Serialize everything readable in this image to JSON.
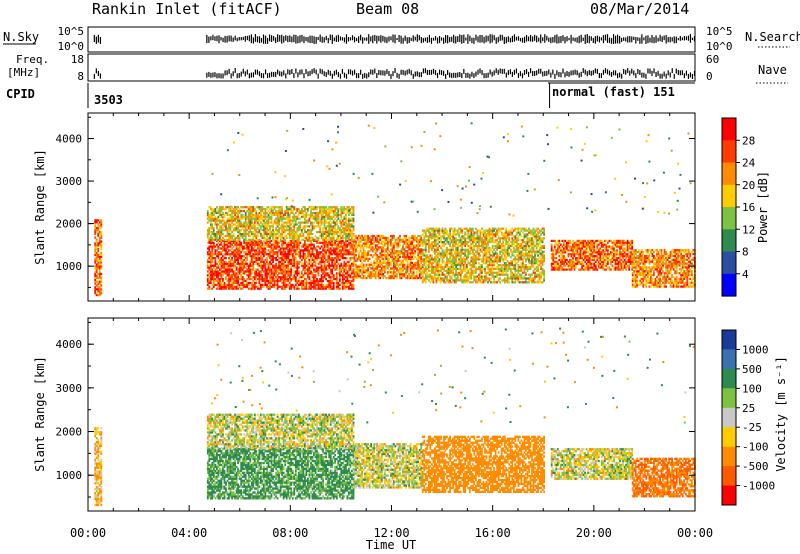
{
  "header": {
    "station": "Rankin Inlet (fitACF)",
    "beam": "Beam 08",
    "date": "08/Mar/2014"
  },
  "strip_panels": {
    "nsky_label": "N.Sky",
    "nsky_ticks": [
      "10^5",
      "10^0"
    ],
    "nsearch_label": "N.Search",
    "nsearch_ticks": [
      "10^5",
      "10^0"
    ],
    "freq_label_1": "Freq.",
    "freq_label_2": "[MHz]",
    "freq_ticks": [
      "18",
      "8"
    ],
    "nave_label": "Nave",
    "nave_ticks": [
      "60",
      "0"
    ],
    "cpid_label": "CPID",
    "cpid_1": "3503",
    "cpid_2": "normal (fast) 151",
    "cpid_switch_hour": 18.25
  },
  "x_axis": {
    "label": "Time UT",
    "tick_labels": [
      "00:00",
      "04:00",
      "08:00",
      "12:00",
      "16:00",
      "20:00",
      "00:00"
    ],
    "range_hours": [
      0,
      24
    ]
  },
  "y_axis": {
    "label": "Slant Range [km]",
    "tick_labels": [
      "1000",
      "2000",
      "3000",
      "4000"
    ],
    "range_km": [
      180,
      4600
    ]
  },
  "power_colorbar": {
    "label": "Power [dB]",
    "tick_labels": [
      "4",
      "8",
      "12",
      "16",
      "20",
      "24",
      "28"
    ],
    "colors": [
      "#0000ff",
      "#2a4fa0",
      "#2e8a4e",
      "#7dc242",
      "#ffcc00",
      "#ff8c00",
      "#ff3b00",
      "#ff0000"
    ]
  },
  "velocity_colorbar": {
    "label": "Velocity [m s⁻¹]",
    "tick_labels": [
      "1000",
      "500",
      "100",
      "25",
      "-25",
      "-100",
      "-500",
      "-1000"
    ],
    "colors": [
      "#1a3a9a",
      "#3a72b0",
      "#2e8a4e",
      "#7dc242",
      "#c8c8c8",
      "#ffcc00",
      "#ff8c00",
      "#ff5a00",
      "#ff0000"
    ]
  },
  "chart_data": [
    {
      "type": "heatmap",
      "title": "Rankin Inlet (fitACF) Beam 08 08/Mar/2014",
      "xlabel": "Time UT",
      "ylabel": "Slant Range [km]",
      "xlim": [
        0,
        24
      ],
      "ylim": [
        180,
        4600
      ],
      "z_label": "Power [dB]",
      "zlim": [
        0,
        32
      ],
      "data_intervals_hours": [
        [
          0.25,
          0.55
        ],
        [
          4.7,
          24.0
        ]
      ],
      "echo_bands": [
        {
          "t_start": 0.25,
          "t_end": 0.55,
          "range_low": 300,
          "range_high": 2100,
          "value": 24
        },
        {
          "t_start": 4.7,
          "t_end": 10.5,
          "range_low": 450,
          "range_high": 1600,
          "value": 26
        },
        {
          "t_start": 4.7,
          "t_end": 10.5,
          "range_low": 1600,
          "range_high": 2400,
          "value": 18
        },
        {
          "t_start": 10.5,
          "t_end": 13.2,
          "range_low": 700,
          "range_high": 1700,
          "value": 22
        },
        {
          "t_start": 13.2,
          "t_end": 18.0,
          "range_low": 600,
          "range_high": 1900,
          "value": 18
        },
        {
          "t_start": 18.3,
          "t_end": 21.5,
          "range_low": 900,
          "range_high": 1600,
          "value": 24
        },
        {
          "t_start": 21.5,
          "t_end": 24.0,
          "range_low": 500,
          "range_high": 1400,
          "value": 22
        }
      ]
    },
    {
      "type": "heatmap",
      "title": "",
      "xlabel": "Time UT",
      "ylabel": "Slant Range [km]",
      "xlim": [
        0,
        24
      ],
      "ylim": [
        180,
        4600
      ],
      "z_label": "Velocity [m s⁻¹]",
      "zlim": [
        -1000,
        1000
      ],
      "echo_bands": [
        {
          "t_start": 0.25,
          "t_end": 0.55,
          "range_low": 300,
          "range_high": 2100,
          "value": -100
        },
        {
          "t_start": 4.7,
          "t_end": 10.5,
          "range_low": 450,
          "range_high": 1600,
          "value": 150
        },
        {
          "t_start": 4.7,
          "t_end": 10.5,
          "range_low": 1600,
          "range_high": 2400,
          "value": 0
        },
        {
          "t_start": 10.5,
          "t_end": 13.2,
          "range_low": 700,
          "range_high": 1700,
          "value": 0
        },
        {
          "t_start": 13.2,
          "t_end": 18.0,
          "range_low": 600,
          "range_high": 1900,
          "value": -250
        },
        {
          "t_start": 18.3,
          "t_end": 21.5,
          "range_low": 900,
          "range_high": 1600,
          "value": 0
        },
        {
          "t_start": 21.5,
          "t_end": 24.0,
          "range_low": 500,
          "range_high": 1400,
          "value": -500
        }
      ]
    }
  ]
}
